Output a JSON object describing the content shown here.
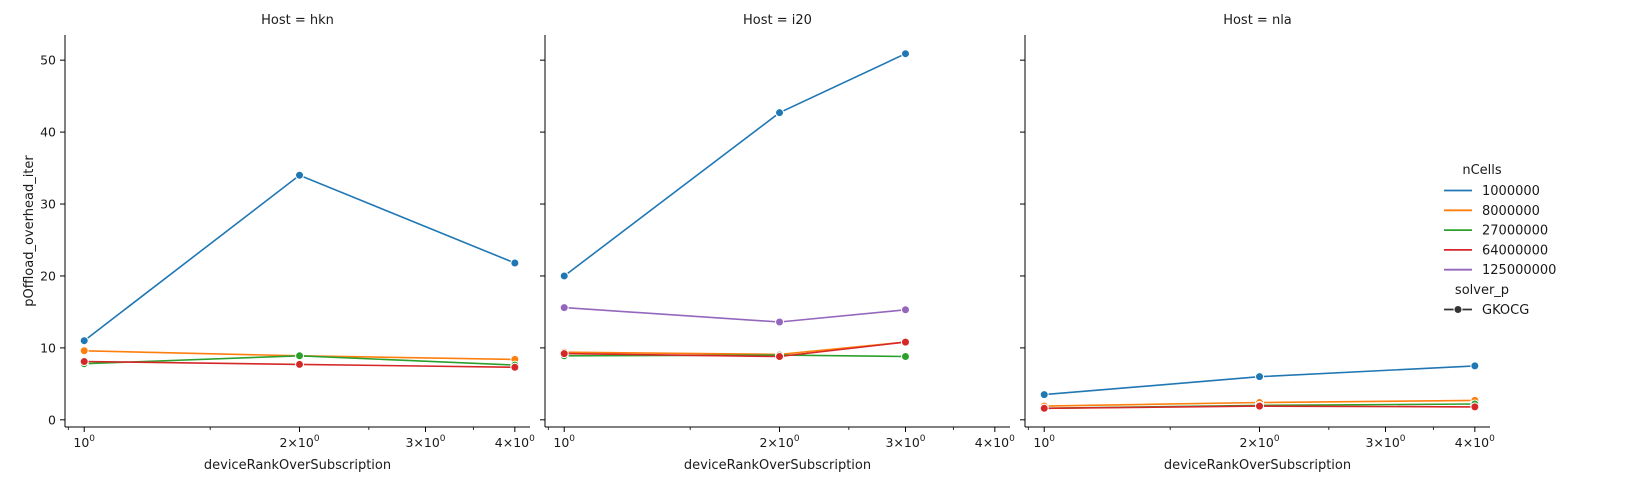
{
  "chart_data": {
    "type": "line",
    "facet_label": "Host",
    "xlabel": "deviceRankOverSubscription",
    "ylabel": "pOffload_overhead_iter",
    "x_scale": "log",
    "xlim": [
      0.94,
      4.2
    ],
    "ylim": [
      -1,
      53.5
    ],
    "x_ticks": [
      {
        "value": 1,
        "base": "10",
        "exp": "0",
        "prefix": ""
      },
      {
        "value": 2,
        "base": "10",
        "exp": "0",
        "prefix": "2×"
      },
      {
        "value": 3,
        "base": "10",
        "exp": "0",
        "prefix": "3×"
      },
      {
        "value": 4,
        "base": "10",
        "exp": "0",
        "prefix": "4×"
      }
    ],
    "y_ticks": [
      0,
      10,
      20,
      30,
      40,
      50
    ],
    "legend": {
      "placement": "right",
      "hue_title": "nCells",
      "style_title": "solver_p",
      "style_entries": [
        "GKOCG"
      ]
    },
    "series_colors": {
      "1000000": "#1f77b4",
      "8000000": "#ff7f0e",
      "27000000": "#2ca02c",
      "64000000": "#d62728",
      "125000000": "#9467bd"
    },
    "panels": [
      {
        "host": "hkn",
        "title": "Host = hkn",
        "series": [
          {
            "name": "1000000",
            "x": [
              1,
              2,
              4
            ],
            "y": [
              11.0,
              34.0,
              21.8
            ]
          },
          {
            "name": "8000000",
            "x": [
              1,
              2,
              4
            ],
            "y": [
              9.6,
              8.9,
              8.4
            ]
          },
          {
            "name": "27000000",
            "x": [
              1,
              2,
              4
            ],
            "y": [
              7.8,
              8.9,
              7.6
            ]
          },
          {
            "name": "64000000",
            "x": [
              1,
              2,
              4
            ],
            "y": [
              8.1,
              7.7,
              7.3
            ]
          }
        ]
      },
      {
        "host": "i20",
        "title": "Host = i20",
        "series": [
          {
            "name": "1000000",
            "x": [
              1,
              2,
              3
            ],
            "y": [
              20.0,
              42.7,
              50.9
            ]
          },
          {
            "name": "8000000",
            "x": [
              1,
              2,
              3
            ],
            "y": [
              9.4,
              9.1,
              10.8
            ]
          },
          {
            "name": "27000000",
            "x": [
              1,
              2,
              3
            ],
            "y": [
              8.9,
              9.0,
              8.8
            ]
          },
          {
            "name": "64000000",
            "x": [
              1,
              2,
              3
            ],
            "y": [
              9.2,
              8.8,
              10.8
            ]
          },
          {
            "name": "125000000",
            "x": [
              1,
              2,
              3
            ],
            "y": [
              15.6,
              13.6,
              15.3
            ]
          }
        ]
      },
      {
        "host": "nla",
        "title": "Host = nla",
        "series": [
          {
            "name": "1000000",
            "x": [
              1,
              2,
              4
            ],
            "y": [
              3.5,
              6.0,
              7.5
            ]
          },
          {
            "name": "8000000",
            "x": [
              1,
              2,
              4
            ],
            "y": [
              1.9,
              2.4,
              2.7
            ]
          },
          {
            "name": "27000000",
            "x": [
              1,
              2,
              4
            ],
            "y": [
              1.6,
              2.0,
              2.2
            ]
          },
          {
            "name": "64000000",
            "x": [
              1,
              2,
              4
            ],
            "y": [
              1.6,
              1.9,
              1.8
            ]
          }
        ]
      }
    ]
  }
}
